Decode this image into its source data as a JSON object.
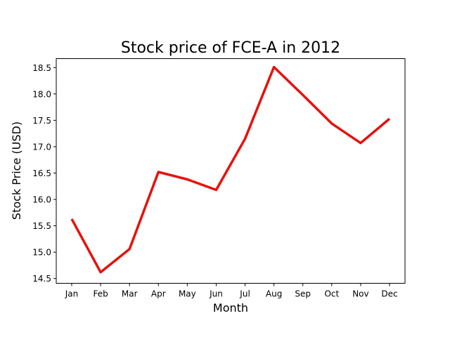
{
  "chart_data": {
    "type": "line",
    "title": "Stock price of FCE-A in 2012",
    "xlabel": "Month",
    "ylabel": "Stock Price (USD)",
    "categories": [
      "Jan",
      "Feb",
      "Mar",
      "Apr",
      "May",
      "Jun",
      "Jul",
      "Aug",
      "Sep",
      "Oct",
      "Nov",
      "Dec"
    ],
    "series": [
      {
        "name": "FCE-A",
        "color": "#e8100b",
        "values": [
          15.63,
          14.62,
          15.06,
          16.52,
          16.38,
          16.18,
          17.15,
          18.51,
          17.98,
          17.44,
          17.07,
          17.53
        ]
      }
    ],
    "yticks": [
      "14.5",
      "15.0",
      "15.5",
      "16.0",
      "16.5",
      "17.0",
      "17.5",
      "18.0",
      "18.5"
    ],
    "ylim": [
      14.41,
      18.67
    ],
    "grid": false,
    "legend": "none"
  }
}
